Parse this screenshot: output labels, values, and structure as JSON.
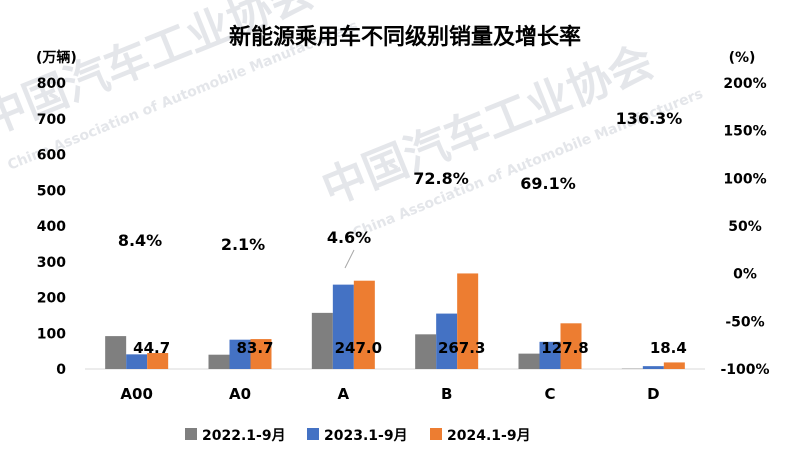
{
  "chart_data": {
    "type": "bar",
    "title": "新能源乘用车不同级别销量及增长率",
    "left_axis": {
      "unit": "(万辆)",
      "ylim": [
        0,
        800
      ],
      "ticks": [
        0,
        100,
        200,
        300,
        400,
        500,
        600,
        700,
        800
      ]
    },
    "right_axis": {
      "unit": "(%)",
      "ylim": [
        -100,
        200
      ],
      "ticks": [
        "-100%",
        "-50%",
        "0%",
        "50%",
        "100%",
        "150%",
        "200%"
      ]
    },
    "categories": [
      "A00",
      "A0",
      "A",
      "B",
      "C",
      "D"
    ],
    "series": [
      {
        "name": "2022.1-9月",
        "color": "#7f7f7f",
        "values": [
          92,
          40,
          157,
          97,
          43,
          1
        ]
      },
      {
        "name": "2023.1-9月",
        "color": "#4472c4",
        "values": [
          41,
          82,
          236,
          155,
          76,
          8
        ]
      },
      {
        "name": "2024.1-9月",
        "color": "#ed7d31",
        "values": [
          44.7,
          83.7,
          247.0,
          267.3,
          127.8,
          18.4
        ]
      }
    ],
    "value_labels": [
      "44.7",
      "83.7",
      "247.0",
      "267.3",
      "127.8",
      "18.4"
    ],
    "growth_labels": [
      "8.4%",
      "2.1%",
      "4.6%",
      "72.8%",
      "69.1%",
      "136.3%"
    ],
    "legend_position": "bottom",
    "grid": false
  },
  "watermark": {
    "cn": "中国汽车工业协会",
    "en": "China Association of Automobile Manufacturers"
  }
}
